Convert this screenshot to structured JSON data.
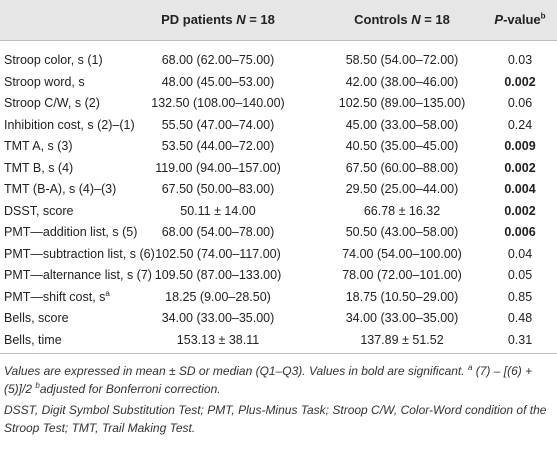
{
  "columns": [
    {
      "pre": "PD patients ",
      "var": "N",
      "post": " = 18"
    },
    {
      "pre": "Controls ",
      "var": "N",
      "post": " = 18"
    },
    {
      "var": "P",
      "post": "-value",
      "sup": "b"
    }
  ],
  "rows": [
    {
      "label": "Stroop color, s (1)",
      "pd": "68.00 (62.00–75.00)",
      "controls": "58.50 (54.00–72.00)",
      "p": "0.03",
      "bold": false
    },
    {
      "label": "Stroop word, s",
      "pd": "48.00 (45.00–53.00)",
      "controls": "42.00 (38.00–46.00)",
      "p": "0.002",
      "bold": true
    },
    {
      "label": "Stroop C/W, s (2)",
      "pd": "132.50 (108.00–140.00)",
      "controls": "102.50 (89.00–135.00)",
      "p": "0.06",
      "bold": false
    },
    {
      "label": "Inhibition cost, s (2)–(1)",
      "pd": "55.50 (47.00–74.00)",
      "controls": "45.00 (33.00–58.00)",
      "p": "0.24",
      "bold": false
    },
    {
      "label": "TMT A, s (3)",
      "pd": "53.50 (44.00–72.00)",
      "controls": "40.50 (35.00–45.00)",
      "p": "0.009",
      "bold": true
    },
    {
      "label": "TMT B, s (4)",
      "pd": "119.00 (94.00–157.00)",
      "controls": "67.50 (60.00–88.00)",
      "p": "0.002",
      "bold": true
    },
    {
      "label": "TMT (B-A), s (4)–(3)",
      "pd": "67.50 (50.00–83.00)",
      "controls": "29.50 (25.00–44.00)",
      "p": "0.004",
      "bold": true
    },
    {
      "label": "DSST, score",
      "pd": "50.11 ± 14.00",
      "controls": "66.78 ± 16.32",
      "p": "0.002",
      "bold": true
    },
    {
      "label": "PMT—addition list, s (5)",
      "pd": "68.00 (54.00–78.00)",
      "controls": "50.50 (43.00–58.00)",
      "p": "0.006",
      "bold": true
    },
    {
      "label": "PMT—subtraction list, s (6)",
      "pd": "102.50 (74.00–117.00)",
      "controls": "74.00 (54.00–100.00)",
      "p": "0.04",
      "bold": false
    },
    {
      "label": "PMT—alternance list, s (7)",
      "pd": "109.50 (87.00–133.00)",
      "controls": "78.00 (72.00–101.00)",
      "p": "0.05",
      "bold": false
    },
    {
      "label": "PMT—shift cost, s",
      "sup": "a",
      "pd": "18.25 (9.00–28.50)",
      "controls": "18.75 (10.50–29.00)",
      "p": "0.85",
      "bold": false
    },
    {
      "label": "Bells, score",
      "pd": "34.00 (33.00–35.00)",
      "controls": "34.00 (33.00–35.00)",
      "p": "0.48",
      "bold": false
    },
    {
      "label": "Bells, time",
      "pd": "153.13 ± 38.11",
      "controls": "137.89 ± 51.52",
      "p": "0.31",
      "bold": false
    }
  ],
  "notes": {
    "main": "Values are expressed in mean ± SD or median (Q1–Q3). Values in bold are significant.",
    "mark_a": "a",
    "note_a": "(7) – [(6) +(5)]/2",
    "mark_b": "b",
    "note_b": "adjusted for Bonferroni correction.",
    "abbreviations": "DSST, Digit Symbol Substitution Test; PMT, Plus-Minus Task; Stroop C/W, Color-Word condition of the Stroop Test; TMT, Trail Making Test."
  }
}
